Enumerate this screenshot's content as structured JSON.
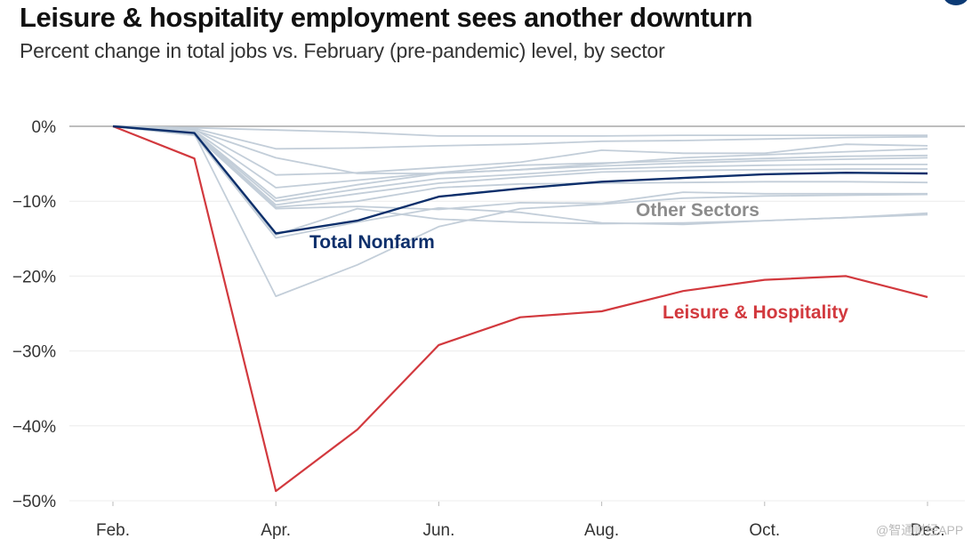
{
  "header": {
    "title": "Leisure & hospitality employment sees another downturn",
    "subtitle": "Percent change in total jobs vs. February (pre-pandemic) level, by sector"
  },
  "watermark": "@智通财经APP",
  "colors": {
    "leisure": "#d2393e",
    "total": "#0d2f6b",
    "other": "#c3ced9",
    "other_label": "#8c8c8c",
    "grid": "#ececec",
    "zero_line": "#a8a8a8"
  },
  "chart_data": {
    "type": "line",
    "title": "Leisure & hospitality employment sees another downturn",
    "subtitle": "Percent change in total jobs vs. February (pre-pandemic) level, by sector",
    "xlabel": "",
    "ylabel": "",
    "x": [
      "Feb.",
      "Mar.",
      "Apr.",
      "May",
      "Jun.",
      "Jul.",
      "Aug.",
      "Sep.",
      "Oct.",
      "Nov.",
      "Dec."
    ],
    "x_tick_labels": [
      "Feb.",
      "Apr.",
      "Jun.",
      "Aug.",
      "Oct.",
      "Dec."
    ],
    "y_ticks": [
      0,
      -10,
      -20,
      -30,
      -40,
      -50
    ],
    "y_tick_labels": [
      "0%",
      "−10%",
      "−20%",
      "−30%",
      "−40%",
      "−50%"
    ],
    "ylim": [
      -50,
      0
    ],
    "grid": true,
    "annotations": [
      {
        "text": "Total Nonfarm",
        "series": "Total Nonfarm"
      },
      {
        "text": "Other Sectors",
        "series": "Other Sectors"
      },
      {
        "text": "Leisure & Hospitality",
        "series": "Leisure & Hospitality"
      }
    ],
    "series": [
      {
        "name": "Leisure & Hospitality",
        "role": "highlight",
        "values": [
          0,
          -4.3,
          -48.7,
          -40.5,
          -29.2,
          -25.5,
          -24.7,
          -22.0,
          -20.5,
          -20.0,
          -22.8
        ]
      },
      {
        "name": "Total Nonfarm",
        "role": "total",
        "values": [
          0,
          -0.9,
          -14.3,
          -12.6,
          -9.4,
          -8.3,
          -7.4,
          -6.9,
          -6.4,
          -6.2,
          -6.3
        ]
      },
      {
        "name": "Other Sectors",
        "role": "other",
        "values": [
          0,
          -0.2,
          -0.5,
          -0.8,
          -1.3,
          -1.3,
          -1.3,
          -1.2,
          -1.2,
          -1.2,
          -1.2
        ]
      },
      {
        "name": "Other Sectors",
        "role": "other",
        "values": [
          0,
          -0.3,
          -3.0,
          -2.9,
          -2.6,
          -2.4,
          -2.0,
          -1.9,
          -1.7,
          -1.5,
          -1.4
        ]
      },
      {
        "name": "Other Sectors",
        "role": "other",
        "values": [
          0,
          -0.4,
          -6.5,
          -6.2,
          -5.5,
          -4.8,
          -3.2,
          -3.6,
          -3.6,
          -2.4,
          -2.6
        ]
      },
      {
        "name": "Other Sectors",
        "role": "other",
        "values": [
          0,
          -0.5,
          -4.2,
          -6.3,
          -6.3,
          -5.8,
          -5.0,
          -4.2,
          -3.8,
          -3.4,
          -3.0
        ]
      },
      {
        "name": "Other Sectors",
        "role": "other",
        "values": [
          0,
          -0.6,
          -8.2,
          -7.2,
          -6.2,
          -5.2,
          -4.9,
          -4.6,
          -4.3,
          -4.0,
          -3.9
        ]
      },
      {
        "name": "Other Sectors",
        "role": "other",
        "values": [
          0,
          -0.7,
          -9.6,
          -7.8,
          -6.3,
          -5.8,
          -5.3,
          -4.9,
          -4.6,
          -4.4,
          -4.2
        ]
      },
      {
        "name": "Other Sectors",
        "role": "other",
        "values": [
          0,
          -0.8,
          -10.0,
          -8.4,
          -7.0,
          -6.4,
          -5.7,
          -5.4,
          -5.2,
          -5.1,
          -5.1
        ]
      },
      {
        "name": "Other Sectors",
        "role": "other",
        "values": [
          0,
          -0.9,
          -10.5,
          -9.0,
          -7.6,
          -6.8,
          -6.1,
          -5.9,
          -5.8,
          -5.7,
          -5.7
        ]
      },
      {
        "name": "Other Sectors",
        "role": "other",
        "values": [
          0,
          -1.0,
          -10.8,
          -10.0,
          -8.2,
          -7.7,
          -7.6,
          -7.5,
          -7.4,
          -7.4,
          -7.5
        ]
      },
      {
        "name": "Other Sectors",
        "role": "other",
        "values": [
          0,
          -1.1,
          -11.0,
          -10.7,
          -11.1,
          -10.2,
          -10.3,
          -8.8,
          -9.0,
          -9.0,
          -9.0
        ]
      },
      {
        "name": "Other Sectors",
        "role": "other",
        "values": [
          0,
          -1.2,
          -14.9,
          -12.8,
          -10.9,
          -11.5,
          -12.9,
          -13.1,
          -12.6,
          -12.2,
          -11.6
        ]
      },
      {
        "name": "Other Sectors",
        "role": "other",
        "values": [
          0,
          -1.2,
          -14.5,
          -11.0,
          -12.4,
          -12.8,
          -13.0,
          -12.9,
          -12.6,
          -12.2,
          -11.8
        ]
      },
      {
        "name": "Other Sectors",
        "role": "other",
        "values": [
          0,
          -1.0,
          -22.7,
          -18.5,
          -13.4,
          -11.0,
          -10.4,
          -9.6,
          -9.3,
          -9.2,
          -9.1
        ]
      }
    ]
  }
}
